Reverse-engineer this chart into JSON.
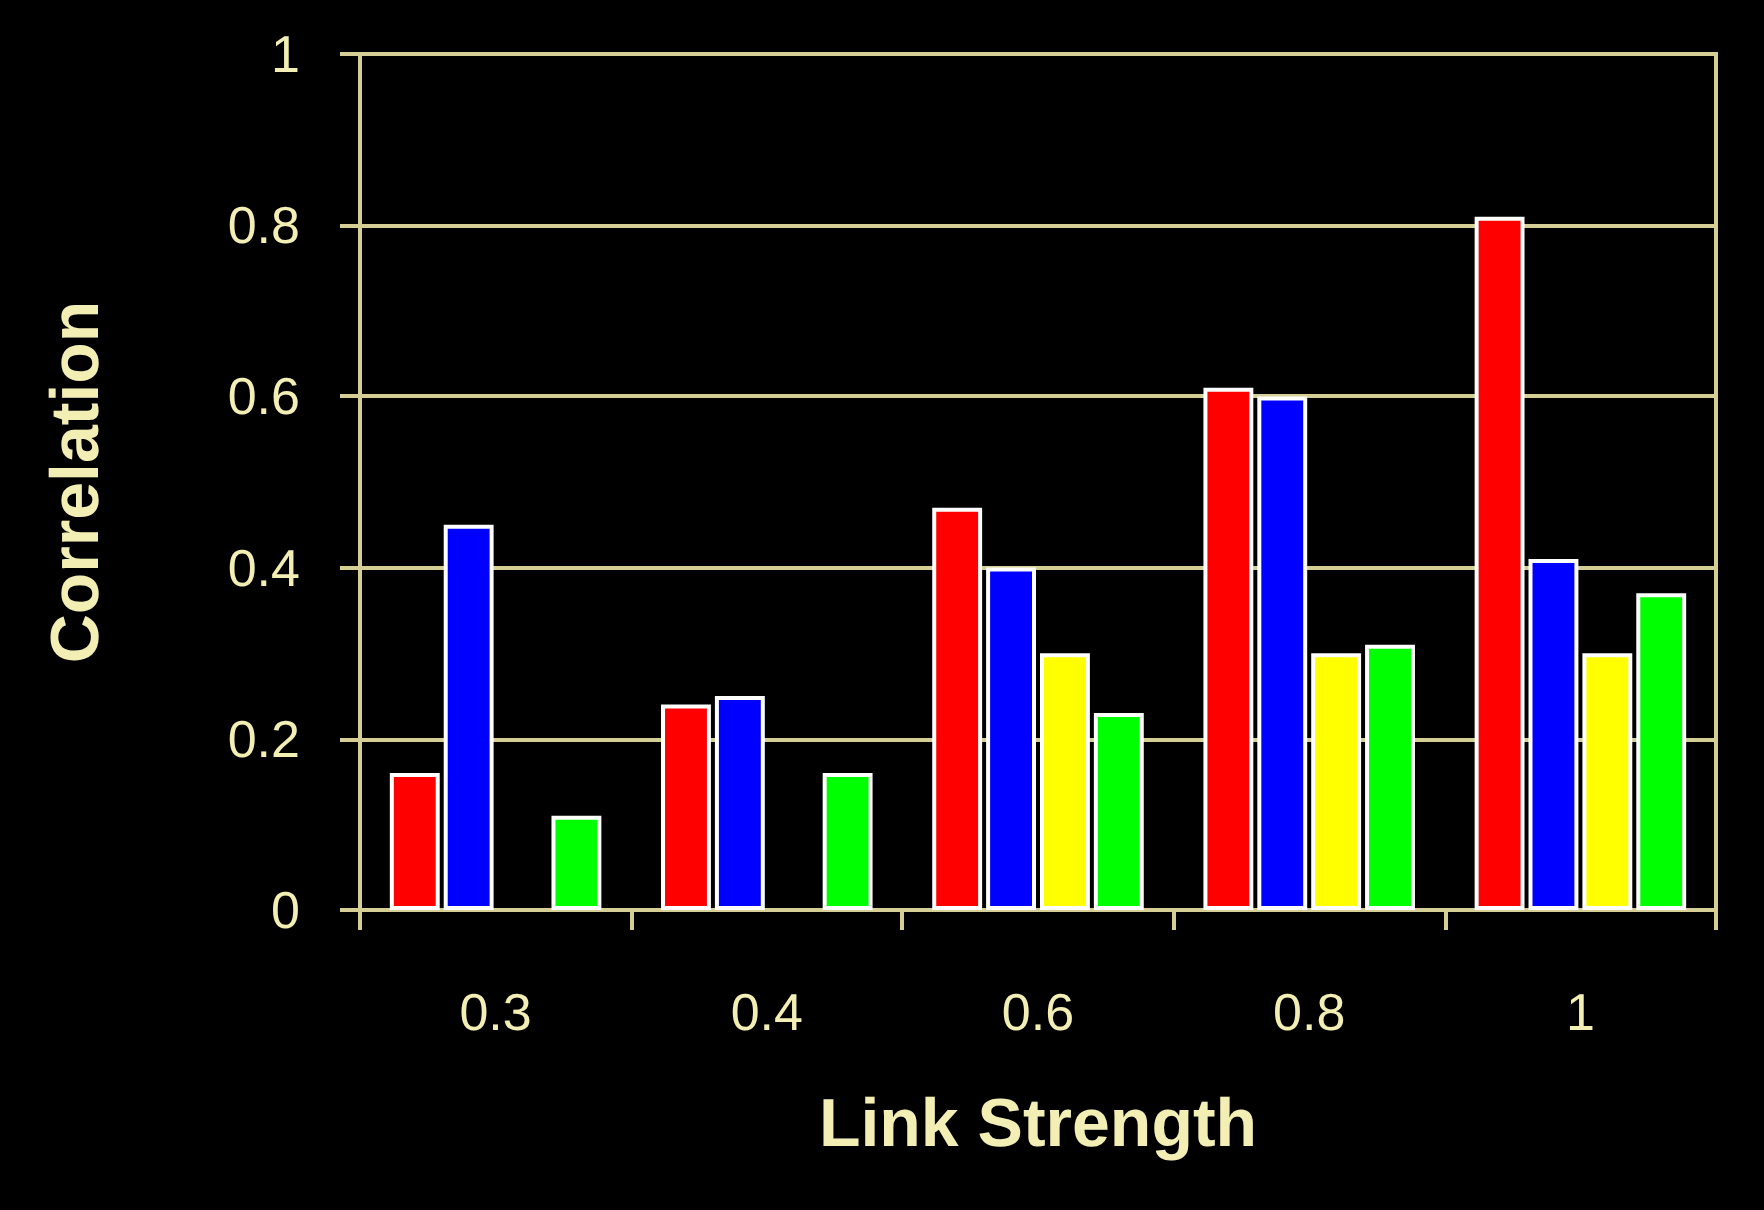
{
  "chart_data": {
    "type": "bar",
    "xlabel": "Link Strength",
    "ylabel": "Correlation",
    "categories": [
      "0.3",
      "0.4",
      "0.6",
      "0.8",
      "1"
    ],
    "series": [
      {
        "color": "#ff0000",
        "values": [
          0.16,
          0.24,
          0.47,
          0.61,
          0.81
        ]
      },
      {
        "color": "#0000ff",
        "values": [
          0.45,
          0.25,
          0.4,
          0.6,
          0.41
        ]
      },
      {
        "color": "#ffff00",
        "values": [
          null,
          null,
          0.3,
          0.3,
          0.3
        ]
      },
      {
        "color": "#00ff00",
        "values": [
          0.11,
          0.16,
          0.23,
          0.31,
          0.37
        ]
      }
    ],
    "ylim": [
      0,
      1
    ],
    "yticks": [
      0,
      0.2,
      0.4,
      0.6,
      0.8,
      1
    ],
    "grid": "y"
  }
}
